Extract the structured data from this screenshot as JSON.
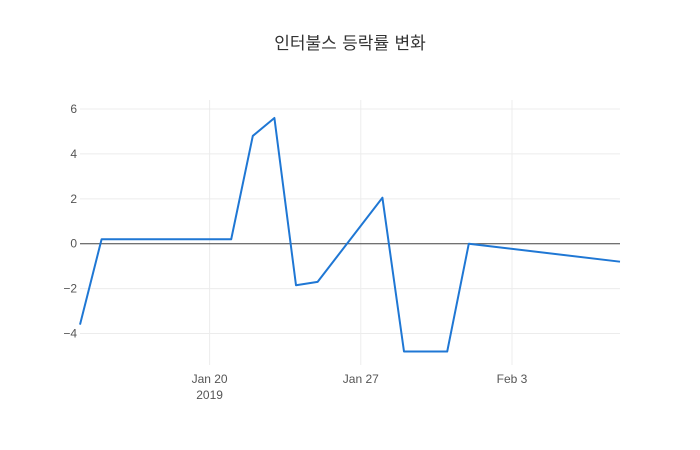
{
  "chart_data": {
    "type": "line",
    "title": "인터불스 등락률 변화",
    "xlabel": "",
    "ylabel": "",
    "x_ticks": [
      {
        "date": "2019-01-20",
        "label": "Jan 20",
        "sublabel": "2019"
      },
      {
        "date": "2019-01-27",
        "label": "Jan 27",
        "sublabel": ""
      },
      {
        "date": "2019-02-03",
        "label": "Feb 3",
        "sublabel": ""
      }
    ],
    "y_ticks": [
      6,
      4,
      2,
      0,
      -2,
      -4
    ],
    "y_tick_labels": [
      "6",
      "4",
      "2",
      "0",
      "−2",
      "−4"
    ],
    "xlim": [
      "2019-01-14",
      "2019-02-08"
    ],
    "ylim": [
      -5.4,
      6.4
    ],
    "grid": true,
    "series": [
      {
        "color": "#1f77d4",
        "points": [
          {
            "x": "2019-01-14",
            "y": -3.6
          },
          {
            "x": "2019-01-15",
            "y": 0.2
          },
          {
            "x": "2019-01-21",
            "y": 0.2
          },
          {
            "x": "2019-01-22",
            "y": 4.8
          },
          {
            "x": "2019-01-23",
            "y": 5.6
          },
          {
            "x": "2019-01-24",
            "y": -1.85
          },
          {
            "x": "2019-01-25",
            "y": -1.7
          },
          {
            "x": "2019-01-28",
            "y": 2.05
          },
          {
            "x": "2019-01-29",
            "y": -4.8
          },
          {
            "x": "2019-01-31",
            "y": -4.8
          },
          {
            "x": "2019-02-01",
            "y": 0.0
          },
          {
            "x": "2019-02-08",
            "y": -0.8
          }
        ]
      }
    ]
  }
}
